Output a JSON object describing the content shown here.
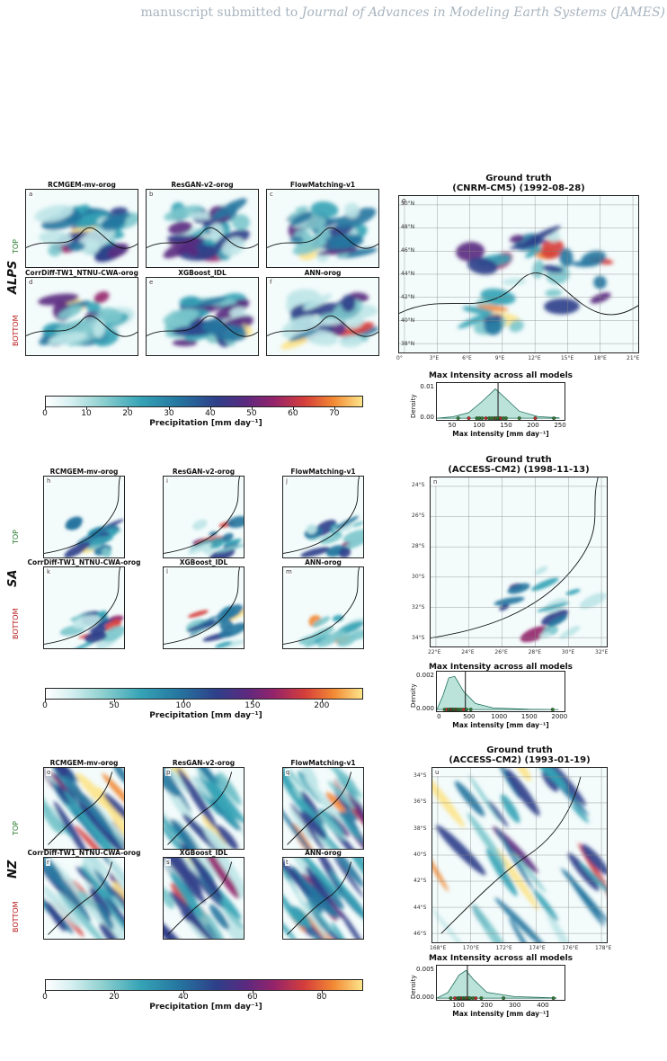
{
  "header": {
    "prefix": "manuscript submitted to",
    "journal": "Journal of Advances in Modeling Earth Systems (JAMES)"
  },
  "sections": [
    {
      "region": "ALPS",
      "top_label": "TOP",
      "bottom_label": "BOTTOM",
      "panels": [
        {
          "title": "RCMGEM-mv-orog",
          "letter": "a"
        },
        {
          "title": "ResGAN-v2-orog",
          "letter": "b"
        },
        {
          "title": "FlowMatching-v1",
          "letter": "c"
        },
        {
          "title": "CorrDiff-TW1_NTNU-CWA-orog",
          "letter": "d"
        },
        {
          "title": "XGBoost_IDL",
          "letter": "e"
        },
        {
          "title": "ANN-orog",
          "letter": "f"
        }
      ],
      "ground_truth": {
        "title": "Ground truth",
        "subtitle": "(CNRM-CM5)   (1992-08-28)",
        "letter": "g",
        "lat_ticks": [
          "50°N",
          "48°N",
          "46°N",
          "44°N",
          "42°N",
          "40°N",
          "38°N"
        ],
        "lon_ticks": [
          "0°",
          "3°E",
          "6°E",
          "9°E",
          "12°E",
          "15°E",
          "18°E",
          "21°E"
        ]
      },
      "colorbar": {
        "ticks": [
          "0",
          "10",
          "20",
          "30",
          "40",
          "50",
          "60",
          "70"
        ],
        "max": 77,
        "label": "Precipitation  [mm day⁻¹]"
      },
      "kde": {
        "title": "Max Intensity across all models",
        "ylabel": "Density",
        "xlabel": "Max intensity  [mm day⁻¹]",
        "yticks": [
          "0.01",
          "0.00"
        ],
        "xticks": [
          "50",
          "100",
          "150",
          "200",
          "250"
        ]
      }
    },
    {
      "region": "SA",
      "top_label": "TOP",
      "bottom_label": "BOTTOM",
      "panels": [
        {
          "title": "RCMGEM-mv-orog",
          "letter": "h"
        },
        {
          "title": "ResGAN-v2-orog",
          "letter": "i"
        },
        {
          "title": "FlowMatching-v1",
          "letter": "j"
        },
        {
          "title": "CorrDiff-TW1_NTNU-CWA-orog",
          "letter": "k"
        },
        {
          "title": "XGBoost_IDL",
          "letter": "l"
        },
        {
          "title": "ANN-orog",
          "letter": "m"
        }
      ],
      "ground_truth": {
        "title": "Ground truth",
        "subtitle": "(ACCESS-CM2)   (1998-11-13)",
        "letter": "n",
        "lat_ticks": [
          "24°S",
          "26°S",
          "28°S",
          "30°S",
          "32°S",
          "34°S"
        ],
        "lon_ticks": [
          "22°E",
          "24°E",
          "26°E",
          "28°E",
          "30°E",
          "32°E"
        ]
      },
      "colorbar": {
        "ticks": [
          "0",
          "50",
          "100",
          "150",
          "200"
        ],
        "max": 230,
        "label": "Precipitation  [mm day⁻¹]"
      },
      "kde": {
        "title": "Max Intensity across all models",
        "ylabel": "Density",
        "xlabel": "Max intensity  [mm day⁻¹]",
        "yticks": [
          "0.002",
          "0.000"
        ],
        "xticks": [
          "0",
          "500",
          "1000",
          "1500",
          "2000"
        ]
      }
    },
    {
      "region": "NZ",
      "top_label": "TOP",
      "bottom_label": "BOTTOM",
      "panels": [
        {
          "title": "RCMGEM-mv-orog",
          "letter": "o"
        },
        {
          "title": "ResGAN-v2-orog",
          "letter": "p"
        },
        {
          "title": "FlowMatching-v1",
          "letter": "q"
        },
        {
          "title": "CorrDiff-TW1_NTNU-CWA-orog",
          "letter": "r"
        },
        {
          "title": "XGBoost_IDL",
          "letter": "s"
        },
        {
          "title": "ANN-orog",
          "letter": "t"
        }
      ],
      "ground_truth": {
        "title": "Ground truth",
        "subtitle": "(ACCESS-CM2)   (1993-01-19)",
        "letter": "u",
        "lat_ticks": [
          "34°S",
          "36°S",
          "38°S",
          "40°S",
          "42°S",
          "44°S",
          "46°S"
        ],
        "lon_ticks": [
          "168°E",
          "170°E",
          "172°E",
          "174°E",
          "176°E",
          "178°E"
        ]
      },
      "colorbar": {
        "ticks": [
          "0",
          "20",
          "40",
          "60",
          "80"
        ],
        "max": 92,
        "label": "Precipitation  [mm day⁻¹]"
      },
      "kde": {
        "title": "Max Intensity across all models",
        "ylabel": "Density",
        "xlabel": "Max intensity  [mm day⁻¹]",
        "yticks": [
          "0.005",
          "0.000"
        ],
        "xticks": [
          "100",
          "200",
          "300",
          "400"
        ]
      }
    }
  ],
  "colors": {
    "low": "#d6eff0",
    "mid": "#2576a0",
    "high": "#94236b",
    "peak": "#fde48a",
    "kde_fill": "#8fd1bf",
    "kde_line": "#1b6e5a"
  }
}
